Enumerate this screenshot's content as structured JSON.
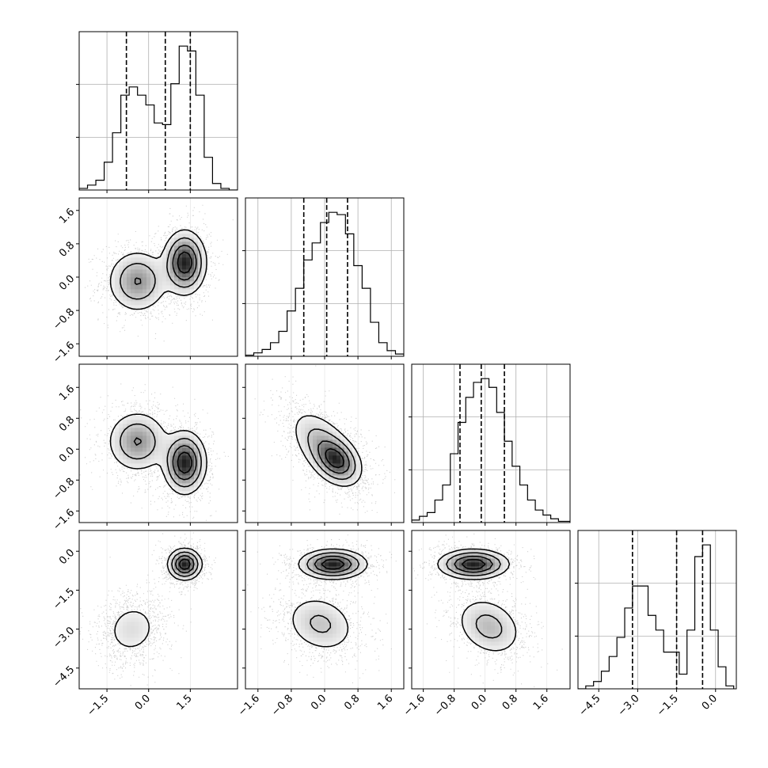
{
  "chart_data": {
    "type": "corner",
    "title": "",
    "parameters": [
      "",
      "",
      "",
      ""
    ],
    "grid": true,
    "ranges": [
      [
        -2.5,
        3.2
      ],
      [
        -1.9,
        1.9
      ],
      [
        -1.9,
        2.2
      ],
      [
        -5.3,
        0.8
      ]
    ],
    "ticks": [
      {
        "values": [
          -1.5,
          0.0,
          1.5
        ],
        "labels": [
          "−1.5",
          "0.0",
          "1.5"
        ]
      },
      {
        "values": [
          -1.6,
          -0.8,
          0.0,
          0.8,
          1.6
        ],
        "labels": [
          "−1.6",
          "−0.8",
          "0.0",
          "0.8",
          "1.6"
        ]
      },
      {
        "values": [
          -1.6,
          -0.8,
          0.0,
          0.8,
          1.6
        ],
        "labels": [
          "−1.6",
          "−0.8",
          "0.0",
          "0.8",
          "1.6"
        ]
      },
      {
        "values": [
          -4.5,
          -3.0,
          -1.5,
          0.0
        ],
        "labels": [
          "−4.5",
          "−3.0",
          "−1.5",
          "0.0"
        ]
      }
    ],
    "quantiles": [
      [
        -0.8,
        0.6,
        1.5
      ],
      [
        -0.5,
        0.05,
        0.55
      ],
      [
        -0.65,
        -0.1,
        0.5
      ],
      [
        -3.2,
        -1.5,
        -0.5
      ]
    ],
    "histograms": [
      {
        "bin_edges": [
          -2.5,
          -2.2,
          -1.9,
          -1.6,
          -1.3,
          -1.0,
          -0.7,
          -0.4,
          -0.1,
          0.2,
          0.5,
          0.8,
          1.1,
          1.4,
          1.7,
          2.0,
          2.3,
          2.6,
          2.9,
          3.2
        ],
        "counts": [
          1,
          3,
          6,
          17,
          35,
          58,
          63,
          58,
          52,
          41,
          40,
          65,
          88,
          85,
          58,
          20,
          4,
          1,
          0
        ]
      },
      {
        "bin_edges": [
          -1.9,
          -1.7,
          -1.5,
          -1.3,
          -1.1,
          -0.9,
          -0.7,
          -0.5,
          -0.3,
          -0.1,
          0.1,
          0.3,
          0.5,
          0.7,
          0.9,
          1.1,
          1.3,
          1.5,
          1.7,
          1.9
        ],
        "counts": [
          1,
          3,
          6,
          12,
          22,
          40,
          60,
          85,
          100,
          118,
          127,
          125,
          108,
          80,
          60,
          30,
          12,
          5,
          2
        ]
      },
      {
        "bin_edges": [
          -1.9,
          -1.7,
          -1.5,
          -1.3,
          -1.1,
          -0.9,
          -0.7,
          -0.5,
          -0.3,
          -0.1,
          0.1,
          0.3,
          0.5,
          0.7,
          0.9,
          1.1,
          1.3,
          1.5,
          1.7,
          1.9,
          2.2
        ],
        "counts": [
          2,
          5,
          8,
          18,
          30,
          55,
          80,
          100,
          112,
          115,
          108,
          88,
          65,
          45,
          30,
          18,
          10,
          6,
          3,
          1
        ]
      },
      {
        "bin_edges": [
          -5.3,
          -5.0,
          -4.7,
          -4.4,
          -4.1,
          -3.8,
          -3.5,
          -3.2,
          -2.9,
          -2.6,
          -2.3,
          -2.0,
          -1.7,
          -1.4,
          -1.1,
          -0.8,
          -0.5,
          -0.2,
          0.1,
          0.4,
          0.7
        ],
        "counts": [
          0,
          2,
          5,
          12,
          22,
          35,
          55,
          70,
          70,
          50,
          40,
          25,
          25,
          10,
          40,
          90,
          98,
          40,
          15,
          2
        ]
      }
    ],
    "pair_modes": {
      "1_0": [
        {
          "mx": -0.4,
          "my": -0.1,
          "sx": 0.55,
          "sy": 0.38,
          "rho": 0.0,
          "w": 0.45
        },
        {
          "mx": 1.3,
          "my": 0.35,
          "sx": 0.38,
          "sy": 0.38,
          "rho": 0.0,
          "w": 0.55
        }
      ],
      "2_0": [
        {
          "mx": -0.4,
          "my": 0.2,
          "sx": 0.55,
          "sy": 0.4,
          "rho": 0.0,
          "w": 0.45
        },
        {
          "mx": 1.3,
          "my": -0.35,
          "sx": 0.38,
          "sy": 0.4,
          "rho": 0.0,
          "w": 0.55
        }
      ],
      "2_1": [
        {
          "mx": 0.0,
          "my": 0.05,
          "sx": 0.42,
          "sy": 0.5,
          "rho": -0.55,
          "w": 0.6
        },
        {
          "mx": 0.3,
          "my": -0.3,
          "sx": 0.28,
          "sy": 0.3,
          "rho": -0.3,
          "w": 0.4
        }
      ],
      "3_0": [
        {
          "mx": -0.6,
          "my": -3.0,
          "sx": 0.55,
          "sy": 0.6,
          "rho": 0.1,
          "w": 0.45
        },
        {
          "mx": 1.3,
          "my": -0.5,
          "sx": 0.3,
          "sy": 0.3,
          "rho": 0.0,
          "w": 0.55
        }
      ],
      "3_1": [
        {
          "mx": -0.1,
          "my": -2.8,
          "sx": 0.45,
          "sy": 0.6,
          "rho": -0.2,
          "w": 0.45
        },
        {
          "mx": 0.2,
          "my": -0.5,
          "sx": 0.4,
          "sy": 0.28,
          "rho": 0.0,
          "w": 0.55
        }
      ],
      "3_2": [
        {
          "mx": 0.1,
          "my": -2.9,
          "sx": 0.45,
          "sy": 0.6,
          "rho": -0.25,
          "w": 0.45
        },
        {
          "mx": -0.3,
          "my": -0.5,
          "sx": 0.45,
          "sy": 0.28,
          "rho": 0.0,
          "w": 0.55
        }
      ]
    },
    "colors": {
      "contour": "#000000",
      "points": "#7a7a7a",
      "grid": "#b0b0b0",
      "quantile": "#000000"
    }
  }
}
